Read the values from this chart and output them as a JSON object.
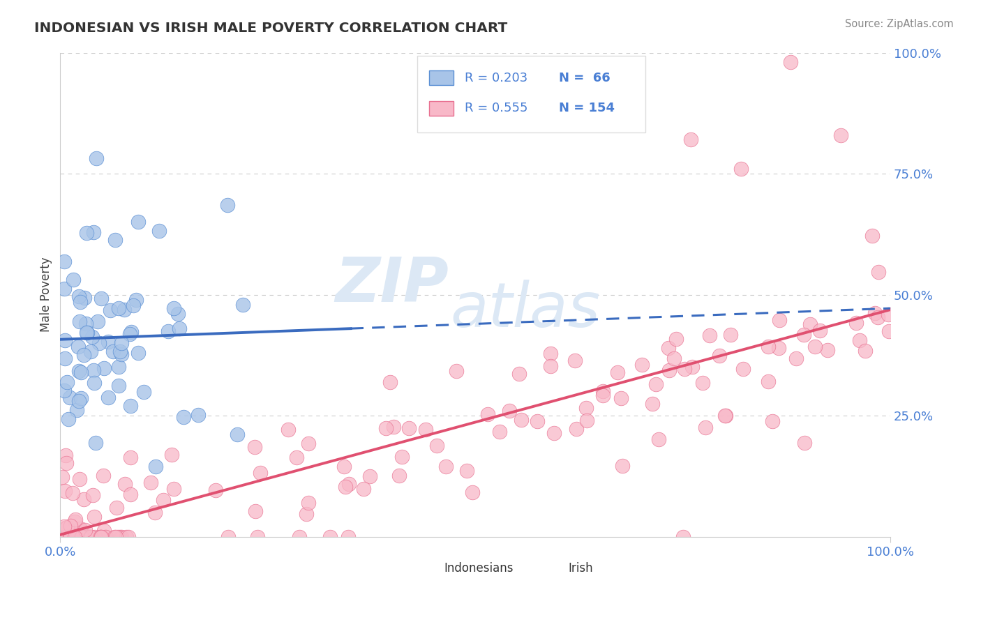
{
  "title": "INDONESIAN VS IRISH MALE POVERTY CORRELATION CHART",
  "source_text": "Source: ZipAtlas.com",
  "ylabel": "Male Poverty",
  "x_min": 0.0,
  "x_max": 1.0,
  "y_min": 0.0,
  "y_max": 1.0,
  "y_tick_positions": [
    0.25,
    0.5,
    0.75,
    1.0
  ],
  "y_tick_labels": [
    "25.0%",
    "50.0%",
    "75.0%",
    "100.0%"
  ],
  "x_tick_labels": [
    "0.0%",
    "100.0%"
  ],
  "legend_r1": "R = 0.203",
  "legend_n1": "N =  66",
  "legend_r2": "R = 0.555",
  "legend_n2": "N = 154",
  "legend_label1": "Indonesians",
  "legend_label2": "Irish",
  "color_indonesian_fill": "#a8c4e8",
  "color_indonesian_edge": "#5a8fd4",
  "color_irish_fill": "#f8b8c8",
  "color_irish_edge": "#e87090",
  "color_line_indonesian": "#3a6bbf",
  "color_line_irish": "#e05070",
  "color_title": "#333333",
  "color_axis": "#4a7fd4",
  "color_grid": "#cccccc",
  "color_watermark": "#dce8f5",
  "background_color": "#ffffff"
}
